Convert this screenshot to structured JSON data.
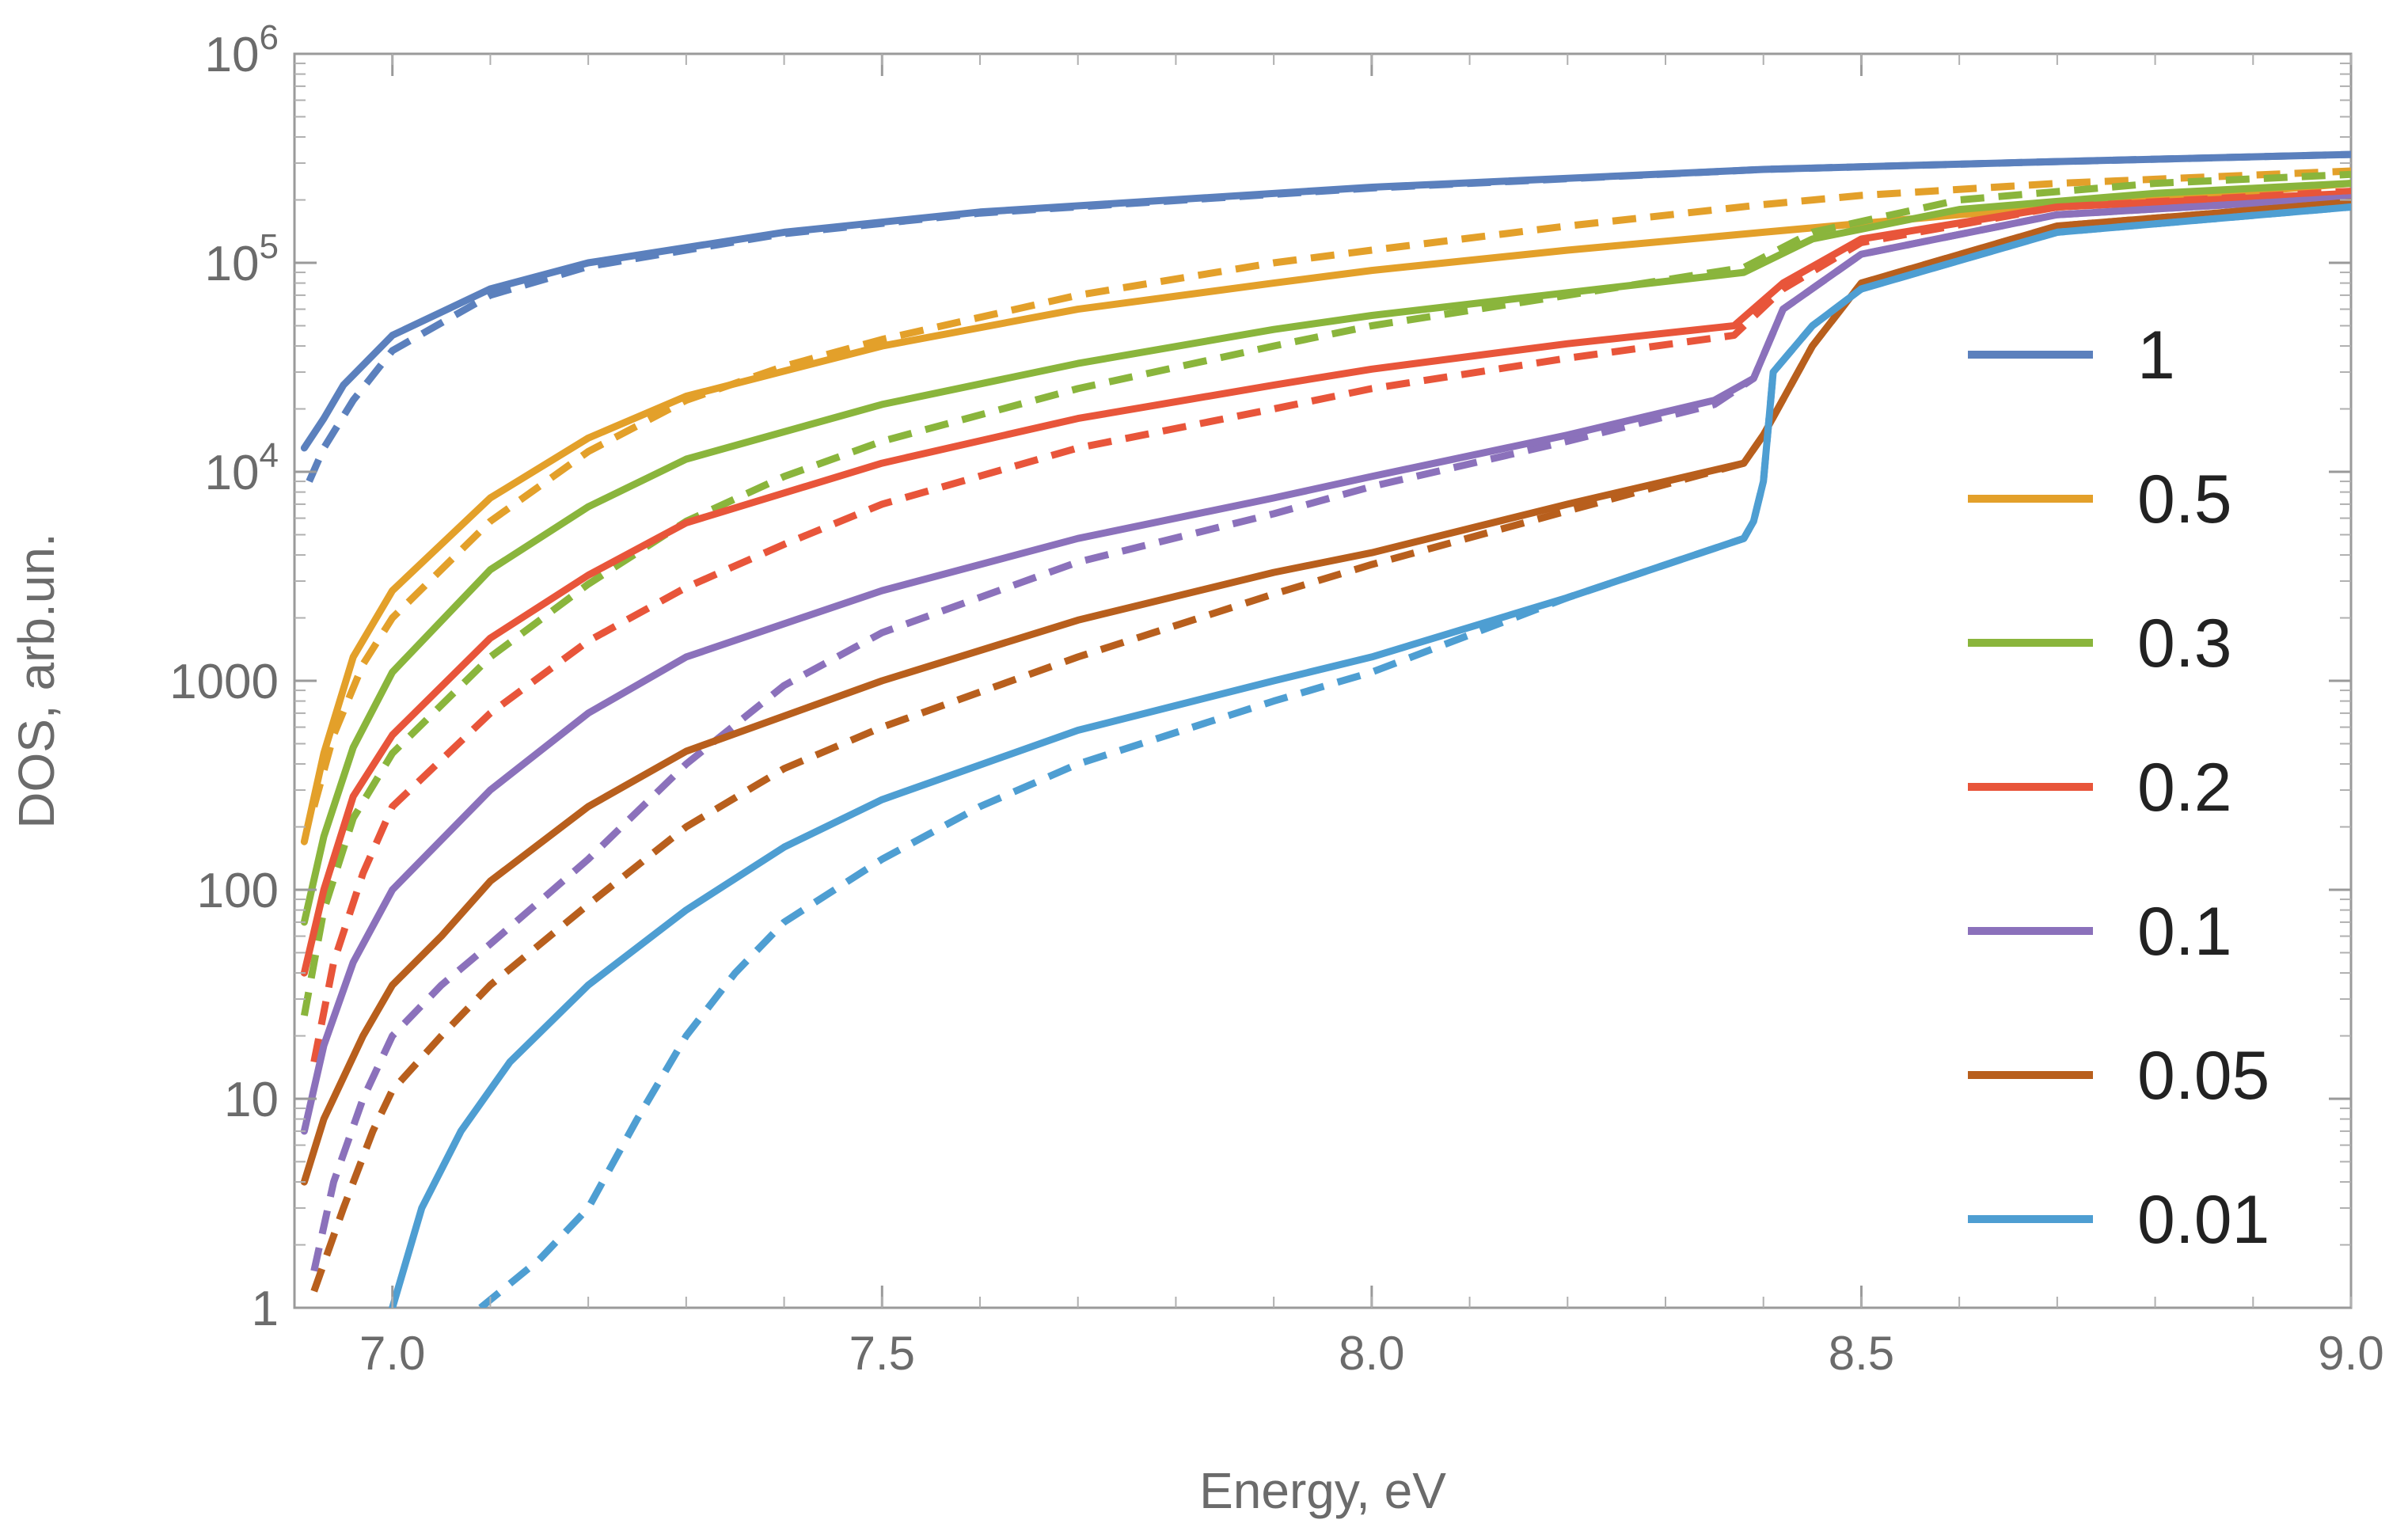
{
  "chart_data": {
    "type": "line",
    "xlabel": "Energy, eV",
    "ylabel": "DOS, arb.un.",
    "xlim": [
      6.9,
      9.0
    ],
    "ylim": [
      1,
      1000000
    ],
    "yscale": "log",
    "grid": false,
    "legend_position": "right",
    "x_ticks": [
      7.0,
      7.5,
      8.0,
      8.5,
      9.0
    ],
    "x_tick_labels": [
      "7.0",
      "7.5",
      "8.0",
      "8.5",
      "9.0"
    ],
    "y_ticks": [
      1,
      10,
      100,
      1000,
      10000,
      100000,
      1000000
    ],
    "y_tick_labels": [
      {
        "base": "1",
        "exp": ""
      },
      {
        "base": "10",
        "exp": ""
      },
      {
        "base": "100",
        "exp": ""
      },
      {
        "base": "1000",
        "exp": ""
      },
      {
        "base": "10",
        "exp": "4"
      },
      {
        "base": "10",
        "exp": "5"
      },
      {
        "base": "10",
        "exp": "6"
      }
    ],
    "series": [
      {
        "name": "1",
        "color": "#5b80bd",
        "solid": [
          [
            6.91,
            13000
          ],
          [
            6.93,
            18000
          ],
          [
            6.95,
            26000
          ],
          [
            7.0,
            45000
          ],
          [
            7.1,
            75000
          ],
          [
            7.2,
            100000
          ],
          [
            7.4,
            140000
          ],
          [
            7.6,
            175000
          ],
          [
            8.0,
            230000
          ],
          [
            8.4,
            280000
          ],
          [
            8.7,
            305000
          ],
          [
            9.0,
            330000
          ]
        ],
        "dashed": [
          [
            6.915,
            9000
          ],
          [
            6.93,
            13000
          ],
          [
            6.96,
            22000
          ],
          [
            7.0,
            38000
          ],
          [
            7.1,
            70000
          ],
          [
            7.2,
            96000
          ],
          [
            7.4,
            138000
          ],
          [
            7.6,
            173000
          ],
          [
            8.0,
            228000
          ],
          [
            8.4,
            280000
          ],
          [
            8.7,
            305000
          ],
          [
            9.0,
            330000
          ]
        ]
      },
      {
        "name": "0.5",
        "color": "#e3a02a",
        "solid": [
          [
            6.91,
            170
          ],
          [
            6.93,
            450
          ],
          [
            6.96,
            1300
          ],
          [
            7.0,
            2700
          ],
          [
            7.1,
            7500
          ],
          [
            7.2,
            14500
          ],
          [
            7.3,
            23000
          ],
          [
            7.5,
            40000
          ],
          [
            7.7,
            60000
          ],
          [
            7.9,
            80000
          ],
          [
            8.0,
            92000
          ],
          [
            8.2,
            115000
          ],
          [
            8.4,
            140000
          ],
          [
            8.6,
            170000
          ],
          [
            8.8,
            200000
          ],
          [
            9.0,
            240000
          ]
        ],
        "dashed": [
          [
            6.92,
            250
          ],
          [
            6.94,
            550
          ],
          [
            6.97,
            1200
          ],
          [
            7.0,
            2000
          ],
          [
            7.1,
            5800
          ],
          [
            7.2,
            12500
          ],
          [
            7.3,
            22000
          ],
          [
            7.4,
            32000
          ],
          [
            7.5,
            43000
          ],
          [
            7.7,
            70000
          ],
          [
            7.9,
            100000
          ],
          [
            8.0,
            115000
          ],
          [
            8.2,
            150000
          ],
          [
            8.4,
            190000
          ],
          [
            8.5,
            210000
          ],
          [
            8.7,
            240000
          ],
          [
            9.0,
            275000
          ]
        ]
      },
      {
        "name": "0.3",
        "color": "#8ab53c",
        "solid": [
          [
            6.91,
            70
          ],
          [
            6.93,
            180
          ],
          [
            6.96,
            480
          ],
          [
            7.0,
            1100
          ],
          [
            7.1,
            3400
          ],
          [
            7.2,
            6800
          ],
          [
            7.3,
            11500
          ],
          [
            7.5,
            21000
          ],
          [
            7.7,
            33000
          ],
          [
            7.9,
            48000
          ],
          [
            8.0,
            56000
          ],
          [
            8.2,
            72000
          ],
          [
            8.38,
            90000
          ],
          [
            8.45,
            130000
          ],
          [
            8.6,
            180000
          ],
          [
            8.8,
            215000
          ],
          [
            9.0,
            240000
          ]
        ],
        "dashed": [
          [
            6.91,
            25
          ],
          [
            6.93,
            80
          ],
          [
            6.96,
            220
          ],
          [
            7.0,
            450
          ],
          [
            7.1,
            1300
          ],
          [
            7.2,
            2900
          ],
          [
            7.3,
            5800
          ],
          [
            7.4,
            9500
          ],
          [
            7.5,
            14000
          ],
          [
            7.7,
            25000
          ],
          [
            7.9,
            40000
          ],
          [
            8.0,
            50000
          ],
          [
            8.2,
            70000
          ],
          [
            8.38,
            95000
          ],
          [
            8.45,
            140000
          ],
          [
            8.6,
            200000
          ],
          [
            8.8,
            240000
          ],
          [
            9.0,
            265000
          ]
        ]
      },
      {
        "name": "0.2",
        "color": "#e8553a",
        "solid": [
          [
            6.91,
            40
          ],
          [
            6.93,
            100
          ],
          [
            6.96,
            280
          ],
          [
            7.0,
            550
          ],
          [
            7.1,
            1600
          ],
          [
            7.2,
            3200
          ],
          [
            7.3,
            5700
          ],
          [
            7.5,
            11000
          ],
          [
            7.7,
            18000
          ],
          [
            7.9,
            26000
          ],
          [
            8.0,
            31000
          ],
          [
            8.2,
            41000
          ],
          [
            8.37,
            50000
          ],
          [
            8.42,
            80000
          ],
          [
            8.5,
            130000
          ],
          [
            8.7,
            185000
          ],
          [
            9.0,
            215000
          ]
        ],
        "dashed": [
          [
            6.92,
            15
          ],
          [
            6.94,
            45
          ],
          [
            6.97,
            120
          ],
          [
            7.0,
            250
          ],
          [
            7.1,
            700
          ],
          [
            7.2,
            1550
          ],
          [
            7.3,
            2800
          ],
          [
            7.4,
            4500
          ],
          [
            7.5,
            7000
          ],
          [
            7.7,
            13000
          ],
          [
            7.9,
            20000
          ],
          [
            8.0,
            25000
          ],
          [
            8.2,
            35000
          ],
          [
            8.37,
            45000
          ],
          [
            8.42,
            75000
          ],
          [
            8.5,
            125000
          ],
          [
            8.7,
            185000
          ],
          [
            9.0,
            220000
          ]
        ]
      },
      {
        "name": "0.1",
        "color": "#8b71bb",
        "solid": [
          [
            6.91,
            7
          ],
          [
            6.93,
            18
          ],
          [
            6.96,
            45
          ],
          [
            7.0,
            100
          ],
          [
            7.1,
            300
          ],
          [
            7.2,
            700
          ],
          [
            7.3,
            1300
          ],
          [
            7.5,
            2700
          ],
          [
            7.7,
            4800
          ],
          [
            7.9,
            7500
          ],
          [
            8.0,
            9500
          ],
          [
            8.2,
            15000
          ],
          [
            8.35,
            22000
          ],
          [
            8.39,
            28000
          ],
          [
            8.42,
            60000
          ],
          [
            8.5,
            110000
          ],
          [
            8.7,
            170000
          ],
          [
            9.0,
            205000
          ]
        ],
        "dashed": [
          [
            6.92,
            1.5
          ],
          [
            6.94,
            4
          ],
          [
            6.97,
            10
          ],
          [
            7.0,
            20
          ],
          [
            7.05,
            35
          ],
          [
            7.1,
            55
          ],
          [
            7.2,
            140
          ],
          [
            7.3,
            400
          ],
          [
            7.4,
            950
          ],
          [
            7.5,
            1700
          ],
          [
            7.7,
            3700
          ],
          [
            7.9,
            6300
          ],
          [
            8.0,
            8500
          ],
          [
            8.2,
            14000
          ],
          [
            8.35,
            21000
          ],
          [
            8.39,
            28000
          ],
          [
            8.42,
            60000
          ],
          [
            8.5,
            110000
          ],
          [
            8.7,
            170000
          ],
          [
            9.0,
            205000
          ]
        ]
      },
      {
        "name": "0.05",
        "color": "#b85f1d",
        "solid": [
          [
            6.91,
            4
          ],
          [
            6.93,
            8
          ],
          [
            6.97,
            20
          ],
          [
            7.0,
            35
          ],
          [
            7.05,
            60
          ],
          [
            7.1,
            110
          ],
          [
            7.2,
            250
          ],
          [
            7.3,
            460
          ],
          [
            7.5,
            1000
          ],
          [
            7.7,
            1950
          ],
          [
            7.9,
            3300
          ],
          [
            8.0,
            4100
          ],
          [
            8.2,
            7000
          ],
          [
            8.38,
            11000
          ],
          [
            8.4,
            15000
          ],
          [
            8.45,
            40000
          ],
          [
            8.5,
            80000
          ],
          [
            8.7,
            150000
          ],
          [
            9.0,
            195000
          ]
        ],
        "dashed": [
          [
            6.92,
            1.2
          ],
          [
            6.95,
            3
          ],
          [
            6.98,
            7
          ],
          [
            7.0,
            11
          ],
          [
            7.05,
            20
          ],
          [
            7.1,
            35
          ],
          [
            7.2,
            85
          ],
          [
            7.3,
            200
          ],
          [
            7.4,
            380
          ],
          [
            7.5,
            600
          ],
          [
            7.7,
            1300
          ],
          [
            7.9,
            2600
          ],
          [
            8.0,
            3600
          ],
          [
            8.2,
            6500
          ],
          [
            8.38,
            11000
          ],
          [
            8.4,
            15000
          ],
          [
            8.45,
            40000
          ],
          [
            8.5,
            80000
          ],
          [
            8.7,
            150000
          ],
          [
            9.0,
            195000
          ]
        ]
      },
      {
        "name": "0.01",
        "color": "#4e9ed2",
        "solid": [
          [
            7.0,
            1
          ],
          [
            7.03,
            3
          ],
          [
            7.07,
            7
          ],
          [
            7.12,
            15
          ],
          [
            7.2,
            35
          ],
          [
            7.3,
            80
          ],
          [
            7.4,
            160
          ],
          [
            7.5,
            270
          ],
          [
            7.7,
            580
          ],
          [
            7.9,
            1000
          ],
          [
            8.0,
            1300
          ],
          [
            8.2,
            2500
          ],
          [
            8.38,
            4800
          ],
          [
            8.39,
            5800
          ],
          [
            8.4,
            9000
          ],
          [
            8.41,
            30000
          ],
          [
            8.45,
            50000
          ],
          [
            8.5,
            75000
          ],
          [
            8.7,
            140000
          ],
          [
            9.0,
            185000
          ]
        ],
        "dashed": [
          [
            7.09,
            1
          ],
          [
            7.15,
            1.7
          ],
          [
            7.2,
            3
          ],
          [
            7.25,
            8
          ],
          [
            7.3,
            20
          ],
          [
            7.35,
            40
          ],
          [
            7.4,
            70
          ],
          [
            7.5,
            140
          ],
          [
            7.6,
            250
          ],
          [
            7.7,
            400
          ],
          [
            7.9,
            800
          ],
          [
            8.0,
            1100
          ],
          [
            8.2,
            2500
          ],
          [
            8.38,
            4800
          ],
          [
            8.39,
            5800
          ],
          [
            8.4,
            9000
          ],
          [
            8.41,
            30000
          ],
          [
            8.45,
            50000
          ],
          [
            8.5,
            75000
          ],
          [
            8.7,
            140000
          ],
          [
            9.0,
            185000
          ]
        ]
      }
    ]
  }
}
